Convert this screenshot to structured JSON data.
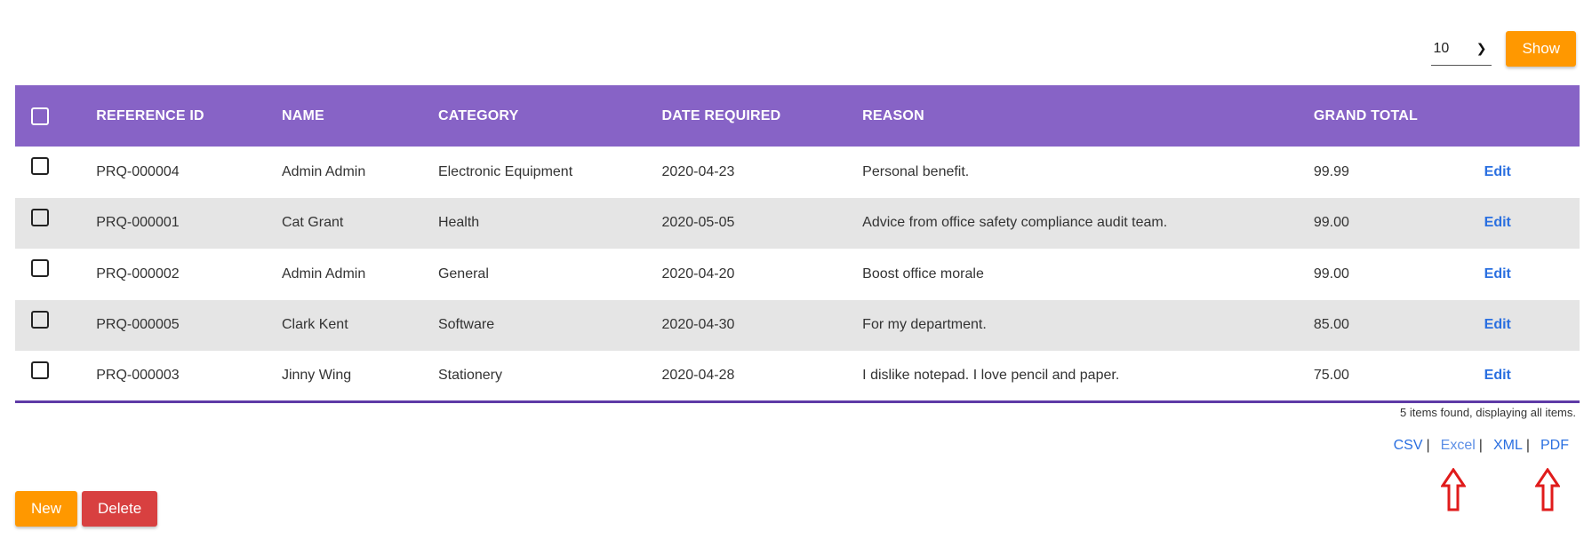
{
  "controls": {
    "page_size_value": "10",
    "show_label": "Show"
  },
  "table": {
    "headers": [
      "REFERENCE ID",
      "NAME",
      "CATEGORY",
      "DATE REQUIRED",
      "REASON",
      "GRAND TOTAL"
    ],
    "rows": [
      {
        "ref": "PRQ-000004",
        "name": "Admin Admin",
        "category": "Electronic Equipment",
        "date": "2020-04-23",
        "reason": "Personal benefit.",
        "total": "99.99",
        "action": "Edit"
      },
      {
        "ref": "PRQ-000001",
        "name": "Cat Grant",
        "category": "Health",
        "date": "2020-05-05",
        "reason": "Advice from office safety compliance audit team.",
        "total": "99.00",
        "action": "Edit"
      },
      {
        "ref": "PRQ-000002",
        "name": "Admin Admin",
        "category": "General",
        "date": "2020-04-20",
        "reason": "Boost office morale",
        "total": "99.00",
        "action": "Edit"
      },
      {
        "ref": "PRQ-000005",
        "name": "Clark Kent",
        "category": "Software",
        "date": "2020-04-30",
        "reason": "For my department.",
        "total": "85.00",
        "action": "Edit"
      },
      {
        "ref": "PRQ-000003",
        "name": "Jinny Wing",
        "category": "Stationery",
        "date": "2020-04-28",
        "reason": "I dislike notepad. I love pencil and paper.",
        "total": "75.00",
        "action": "Edit"
      }
    ]
  },
  "summary": "5 items found, displaying all items.",
  "exports": [
    "CSV",
    "Excel",
    "XML",
    "PDF"
  ],
  "actions": {
    "new_label": "New",
    "delete_label": "Delete"
  },
  "colors": {
    "header_bg": "#8763c6",
    "accent_orange": "#ff9800",
    "danger_red": "#d84040",
    "link_blue": "#2a6fe0",
    "annotation_arrow": "#e01b1b"
  }
}
